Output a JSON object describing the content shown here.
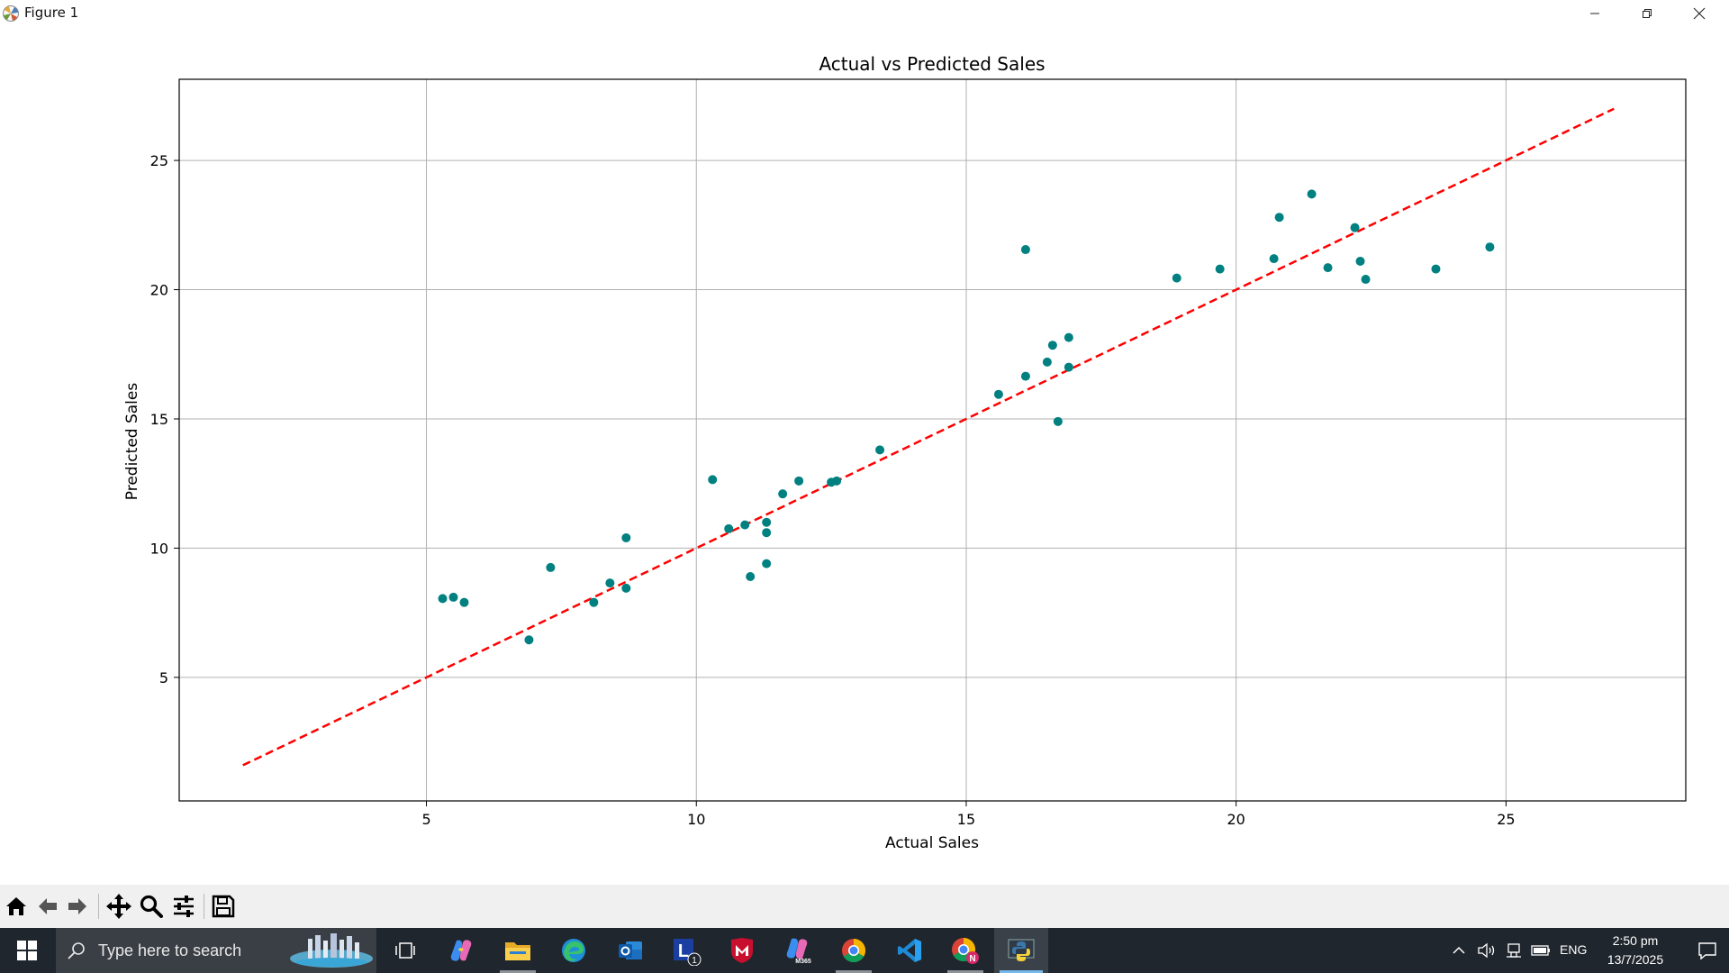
{
  "window": {
    "title": "Figure 1"
  },
  "chart_data": {
    "type": "scatter",
    "title": "Actual vs Predicted Sales",
    "xlabel": "Actual Sales",
    "ylabel": "Predicted Sales",
    "xlim": [
      0.42,
      28.33
    ],
    "ylim": [
      0.22,
      28.14
    ],
    "xticks": [
      5,
      10,
      15,
      20,
      25
    ],
    "yticks": [
      5,
      10,
      15,
      20,
      25
    ],
    "xtick_labels": [
      "5",
      "10",
      "15",
      "20",
      "25"
    ],
    "ytick_labels": [
      "5",
      "10",
      "15",
      "20",
      "25"
    ],
    "grid": true,
    "legend": "none",
    "marker_color": "#008080",
    "reference_line": {
      "style": "dashed",
      "color": "#ff0000",
      "x": [
        1.6,
        27.0
      ],
      "y": [
        1.6,
        27.0
      ]
    },
    "points": [
      {
        "x": 5.3,
        "y": 8.05
      },
      {
        "x": 5.5,
        "y": 8.1
      },
      {
        "x": 5.7,
        "y": 7.9
      },
      {
        "x": 6.9,
        "y": 6.45
      },
      {
        "x": 7.3,
        "y": 9.25
      },
      {
        "x": 8.1,
        "y": 7.9
      },
      {
        "x": 8.4,
        "y": 8.65
      },
      {
        "x": 8.7,
        "y": 8.45
      },
      {
        "x": 8.7,
        "y": 10.4
      },
      {
        "x": 10.3,
        "y": 12.65
      },
      {
        "x": 10.6,
        "y": 10.75
      },
      {
        "x": 10.9,
        "y": 10.9
      },
      {
        "x": 11.0,
        "y": 8.9
      },
      {
        "x": 11.3,
        "y": 11.0
      },
      {
        "x": 11.3,
        "y": 10.6
      },
      {
        "x": 11.3,
        "y": 9.4
      },
      {
        "x": 11.6,
        "y": 12.1
      },
      {
        "x": 11.9,
        "y": 12.6
      },
      {
        "x": 12.5,
        "y": 12.55
      },
      {
        "x": 12.6,
        "y": 12.6
      },
      {
        "x": 13.4,
        "y": 13.8
      },
      {
        "x": 15.6,
        "y": 15.95
      },
      {
        "x": 16.1,
        "y": 16.65
      },
      {
        "x": 16.1,
        "y": 21.55
      },
      {
        "x": 16.5,
        "y": 17.2
      },
      {
        "x": 16.6,
        "y": 17.85
      },
      {
        "x": 16.7,
        "y": 14.9
      },
      {
        "x": 16.9,
        "y": 18.15
      },
      {
        "x": 16.9,
        "y": 17.0
      },
      {
        "x": 18.9,
        "y": 20.45
      },
      {
        "x": 19.7,
        "y": 20.8
      },
      {
        "x": 20.7,
        "y": 21.2
      },
      {
        "x": 20.8,
        "y": 22.8
      },
      {
        "x": 21.4,
        "y": 23.7
      },
      {
        "x": 21.7,
        "y": 20.85
      },
      {
        "x": 22.2,
        "y": 22.4
      },
      {
        "x": 22.3,
        "y": 21.1
      },
      {
        "x": 22.4,
        "y": 20.4
      },
      {
        "x": 23.7,
        "y": 20.8
      },
      {
        "x": 24.7,
        "y": 21.65
      }
    ]
  },
  "toolbar": {
    "icons": [
      "home-icon",
      "back-arrow-icon",
      "forward-arrow-icon",
      "pan-icon",
      "zoom-icon",
      "subplots-config-icon",
      "save-icon"
    ]
  },
  "taskbar": {
    "search_placeholder": "Type here to search",
    "apps": [
      "task-view",
      "copilot",
      "file-explorer",
      "edge",
      "outlook",
      "lens",
      "mcafee",
      "microsoft-365",
      "chrome",
      "vscode",
      "chrome-profile",
      "python"
    ],
    "lens_badge": "1",
    "m365_label": "M365",
    "chrome_profile_badge": "N",
    "language": "ENG",
    "time": "2:50 pm",
    "date": "13/7/2025"
  },
  "colors": {
    "taskbar_bg": "#20262d",
    "toolbar_bg": "#f0f0f0",
    "accent": "#76b9ed"
  }
}
